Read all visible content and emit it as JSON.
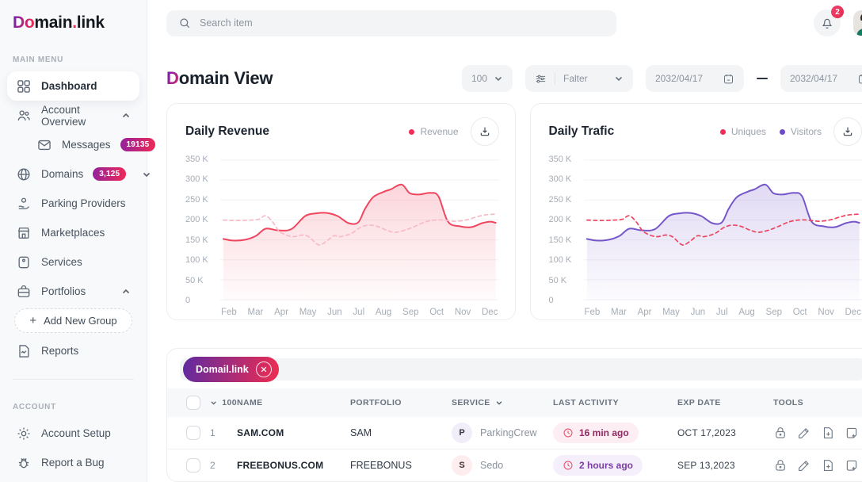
{
  "theme": {
    "gradient_from": "#7b21a8",
    "gradient_to": "#ef2b54",
    "accent_red": "#ef2d56",
    "accent_purple": "#7556c9",
    "sidebar_bg": "#f8f9fb",
    "card_border": "#eceef1"
  },
  "brand": {
    "logo_gradient": "Do",
    "logo_main": "main",
    "logo_dot": ".",
    "logo_suffix": "link"
  },
  "sidebar": {
    "main_menu_label": "MAIN MENU",
    "account_label": "ACCOUNT",
    "items": [
      {
        "label": "Dashboard"
      },
      {
        "label": "Account Overview"
      },
      {
        "label": "Messages",
        "badge": "19135"
      },
      {
        "label": "Domains",
        "badge": "3,125"
      },
      {
        "label": "Parking Providers"
      },
      {
        "label": "Marketplaces"
      },
      {
        "label": "Services"
      },
      {
        "label": "Portfolios"
      },
      {
        "label": "Add New Group"
      },
      {
        "label": "Reports"
      },
      {
        "label": "Account Setup"
      },
      {
        "label": "Report a Bug"
      }
    ]
  },
  "topbar": {
    "search_placeholder": "Search item",
    "notification_count": "2"
  },
  "page": {
    "title_accent": "D",
    "title_rest": "omain View",
    "page_size": "100",
    "filter_label": "Falter",
    "date_from": "2032/04/17",
    "date_to": "2032/04/17"
  },
  "chart_data": [
    {
      "type": "area",
      "title": "Daily Revenue",
      "legend": [
        {
          "name": "Revenue",
          "color": "#ef2d56"
        }
      ],
      "x_labels": [
        "Feb",
        "Mar",
        "Apr",
        "May",
        "Jun",
        "Jul",
        "Aug",
        "Sep",
        "Oct",
        "Nov",
        "Dec"
      ],
      "y_ticks": [
        "350 K",
        "300 K",
        "250 K",
        "200 K",
        "150 K",
        "100 K",
        "50 K",
        "0"
      ],
      "ylim_k": [
        0,
        350
      ],
      "units": "K",
      "grid": true,
      "legend_position": "top-right",
      "series": [
        {
          "name": "Revenue",
          "style": "solid",
          "color": "#f0455e",
          "fill": true,
          "points_k": [
            [
              0,
              152
            ],
            [
              0.35,
              148
            ],
            [
              0.8,
              150
            ],
            [
              1.2,
              160
            ],
            [
              1.55,
              178
            ],
            [
              2,
              174
            ],
            [
              2.5,
              177
            ],
            [
              3,
              210
            ],
            [
              3.4,
              217
            ],
            [
              3.8,
              218
            ],
            [
              4.2,
              210
            ],
            [
              4.6,
              192
            ],
            [
              4.95,
              194
            ],
            [
              5.2,
              228
            ],
            [
              5.5,
              258
            ],
            [
              5.9,
              272
            ],
            [
              6.15,
              278
            ],
            [
              6.55,
              290
            ],
            [
              6.85,
              268
            ],
            [
              7.2,
              265
            ],
            [
              7.6,
              269
            ],
            [
              7.9,
              260
            ],
            [
              8.25,
              196
            ],
            [
              8.7,
              184
            ],
            [
              9.1,
              182
            ],
            [
              9.5,
              192
            ],
            [
              9.8,
              196
            ],
            [
              10,
              193
            ]
          ]
        },
        {
          "name": "",
          "style": "dashed",
          "color": "#f7bac7",
          "fill": false,
          "points_k": [
            [
              0,
              200
            ],
            [
              0.5,
              199
            ],
            [
              1,
              200
            ],
            [
              1.3,
              202
            ],
            [
              1.55,
              211
            ],
            [
              1.8,
              196
            ],
            [
              2.05,
              172
            ],
            [
              2.35,
              161
            ],
            [
              2.6,
              158
            ],
            [
              2.9,
              162
            ],
            [
              3.15,
              157
            ],
            [
              3.5,
              137
            ],
            [
              3.8,
              147
            ],
            [
              4.05,
              160
            ],
            [
              4.3,
              158
            ],
            [
              4.7,
              166
            ],
            [
              5,
              180
            ],
            [
              5.3,
              187
            ],
            [
              5.65,
              184
            ],
            [
              6,
              174
            ],
            [
              6.3,
              169
            ],
            [
              6.65,
              174
            ],
            [
              7,
              183
            ],
            [
              7.4,
              195
            ],
            [
              7.75,
              200
            ],
            [
              8.1,
              200
            ],
            [
              8.5,
              197
            ],
            [
              8.9,
              200
            ],
            [
              9.3,
              208
            ],
            [
              9.6,
              213
            ],
            [
              10,
              215
            ]
          ]
        }
      ]
    },
    {
      "type": "area",
      "title": "Daily Trafic",
      "legend": [
        {
          "name": "Uniques",
          "color": "#ef2d56"
        },
        {
          "name": "Visitors",
          "color": "#6d4bc4"
        }
      ],
      "x_labels": [
        "Feb",
        "Mar",
        "Apr",
        "May",
        "Jun",
        "Jul",
        "Aug",
        "Sep",
        "Oct",
        "Nov",
        "Dec"
      ],
      "y_ticks": [
        "350 K",
        "300 K",
        "250 K",
        "200 K",
        "150 K",
        "100 K",
        "50 K",
        "0"
      ],
      "ylim_k": [
        0,
        350
      ],
      "units": "K",
      "grid": true,
      "legend_position": "top-right",
      "series": [
        {
          "name": "Visitors",
          "style": "solid",
          "color": "#7556c9",
          "fill": true,
          "points_k": [
            [
              0,
              152
            ],
            [
              0.35,
              148
            ],
            [
              0.8,
              150
            ],
            [
              1.2,
              160
            ],
            [
              1.55,
              178
            ],
            [
              2,
              174
            ],
            [
              2.5,
              177
            ],
            [
              3,
              210
            ],
            [
              3.4,
              217
            ],
            [
              3.8,
              218
            ],
            [
              4.2,
              210
            ],
            [
              4.6,
              192
            ],
            [
              4.95,
              194
            ],
            [
              5.2,
              228
            ],
            [
              5.5,
              258
            ],
            [
              5.9,
              272
            ],
            [
              6.15,
              278
            ],
            [
              6.55,
              290
            ],
            [
              6.85,
              268
            ],
            [
              7.2,
              265
            ],
            [
              7.6,
              269
            ],
            [
              7.9,
              260
            ],
            [
              8.25,
              196
            ],
            [
              8.7,
              184
            ],
            [
              9.1,
              182
            ],
            [
              9.5,
              192
            ],
            [
              9.8,
              196
            ],
            [
              10,
              193
            ]
          ]
        },
        {
          "name": "Uniques",
          "style": "dashed",
          "color": "#ee4460",
          "fill": false,
          "points_k": [
            [
              0,
              200
            ],
            [
              0.5,
              199
            ],
            [
              1,
              200
            ],
            [
              1.3,
              202
            ],
            [
              1.55,
              211
            ],
            [
              1.8,
              196
            ],
            [
              2.05,
              172
            ],
            [
              2.35,
              161
            ],
            [
              2.6,
              158
            ],
            [
              2.9,
              162
            ],
            [
              3.15,
              157
            ],
            [
              3.5,
              137
            ],
            [
              3.8,
              147
            ],
            [
              4.05,
              160
            ],
            [
              4.3,
              158
            ],
            [
              4.7,
              166
            ],
            [
              5,
              180
            ],
            [
              5.3,
              187
            ],
            [
              5.65,
              184
            ],
            [
              6,
              174
            ],
            [
              6.3,
              169
            ],
            [
              6.65,
              174
            ],
            [
              7,
              183
            ],
            [
              7.4,
              195
            ],
            [
              7.75,
              200
            ],
            [
              8.1,
              200
            ],
            [
              8.5,
              197
            ],
            [
              8.9,
              200
            ],
            [
              9.3,
              208
            ],
            [
              9.6,
              213
            ],
            [
              10,
              215
            ]
          ]
        }
      ]
    }
  ],
  "table": {
    "filter_tag": "Domail.link",
    "count_header": "100",
    "columns": {
      "name": "NAME",
      "portfolio": "PORTFOLIO",
      "service": "SERVICE",
      "last_activity": "LAST ACTIVITY",
      "exp_date": "EXP DATE",
      "tools": "TOOLS"
    },
    "rows": [
      {
        "num": "1",
        "name": "SAM.COM",
        "portfolio": "SAM",
        "service_initial": "P",
        "service": "ParkingCrew",
        "last_activity": "16 min ago",
        "exp_date": "OCT 17,2023"
      },
      {
        "num": "2",
        "name": "FREEBONUS.COM",
        "portfolio": "FREEBONUS",
        "service_initial": "S",
        "service": "Sedo",
        "last_activity": "2 hours ago",
        "exp_date": "SEP 13,2023"
      }
    ]
  }
}
